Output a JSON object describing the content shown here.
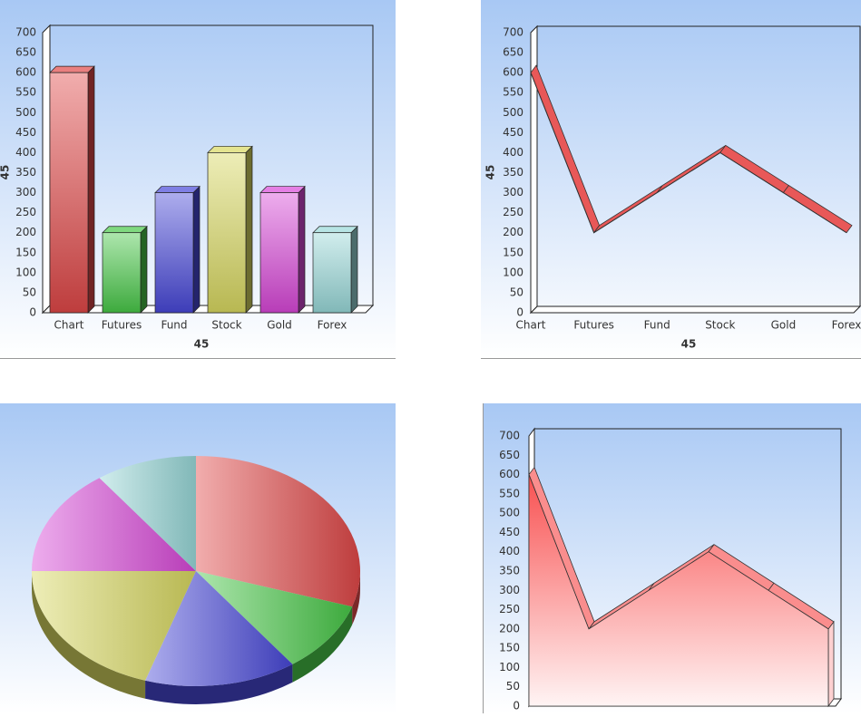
{
  "chart_data": [
    {
      "type": "bar",
      "categories": [
        "Chart",
        "Futures",
        "Fund",
        "Stock",
        "Gold",
        "Forex"
      ],
      "values": [
        600,
        200,
        300,
        400,
        300,
        200
      ],
      "colors": [
        "#e04848",
        "#48c848",
        "#4848d8",
        "#d8d860",
        "#d848d8",
        "#98d8d8"
      ],
      "ylim": [
        0,
        700
      ],
      "yticks": [
        0,
        50,
        100,
        150,
        200,
        250,
        300,
        350,
        400,
        450,
        500,
        550,
        600,
        650,
        700
      ],
      "x_label": "45",
      "y_label": "45"
    },
    {
      "type": "line",
      "categories": [
        "Chart",
        "Futures",
        "Fund",
        "Stock",
        "Gold",
        "Forex"
      ],
      "values": [
        600,
        200,
        300,
        400,
        300,
        200
      ],
      "color": "#e85858",
      "ylim": [
        0,
        700
      ],
      "yticks": [
        0,
        50,
        100,
        150,
        200,
        250,
        300,
        350,
        400,
        450,
        500,
        550,
        600,
        650,
        700
      ],
      "x_label": "45",
      "y_label": "45"
    },
    {
      "type": "pie",
      "values": [
        600,
        200,
        300,
        400,
        300,
        200
      ],
      "colors": [
        "#e04848",
        "#48c848",
        "#4848d8",
        "#d8d860",
        "#d848d8",
        "#98d8d8"
      ]
    },
    {
      "type": "area",
      "values": [
        600,
        200,
        300,
        400,
        300,
        200
      ],
      "color": "#f85050",
      "ylim": [
        0,
        700
      ],
      "yticks": [
        0,
        50,
        100,
        150,
        200,
        250,
        300,
        350,
        400,
        450,
        500,
        550,
        600,
        650,
        700
      ]
    }
  ]
}
